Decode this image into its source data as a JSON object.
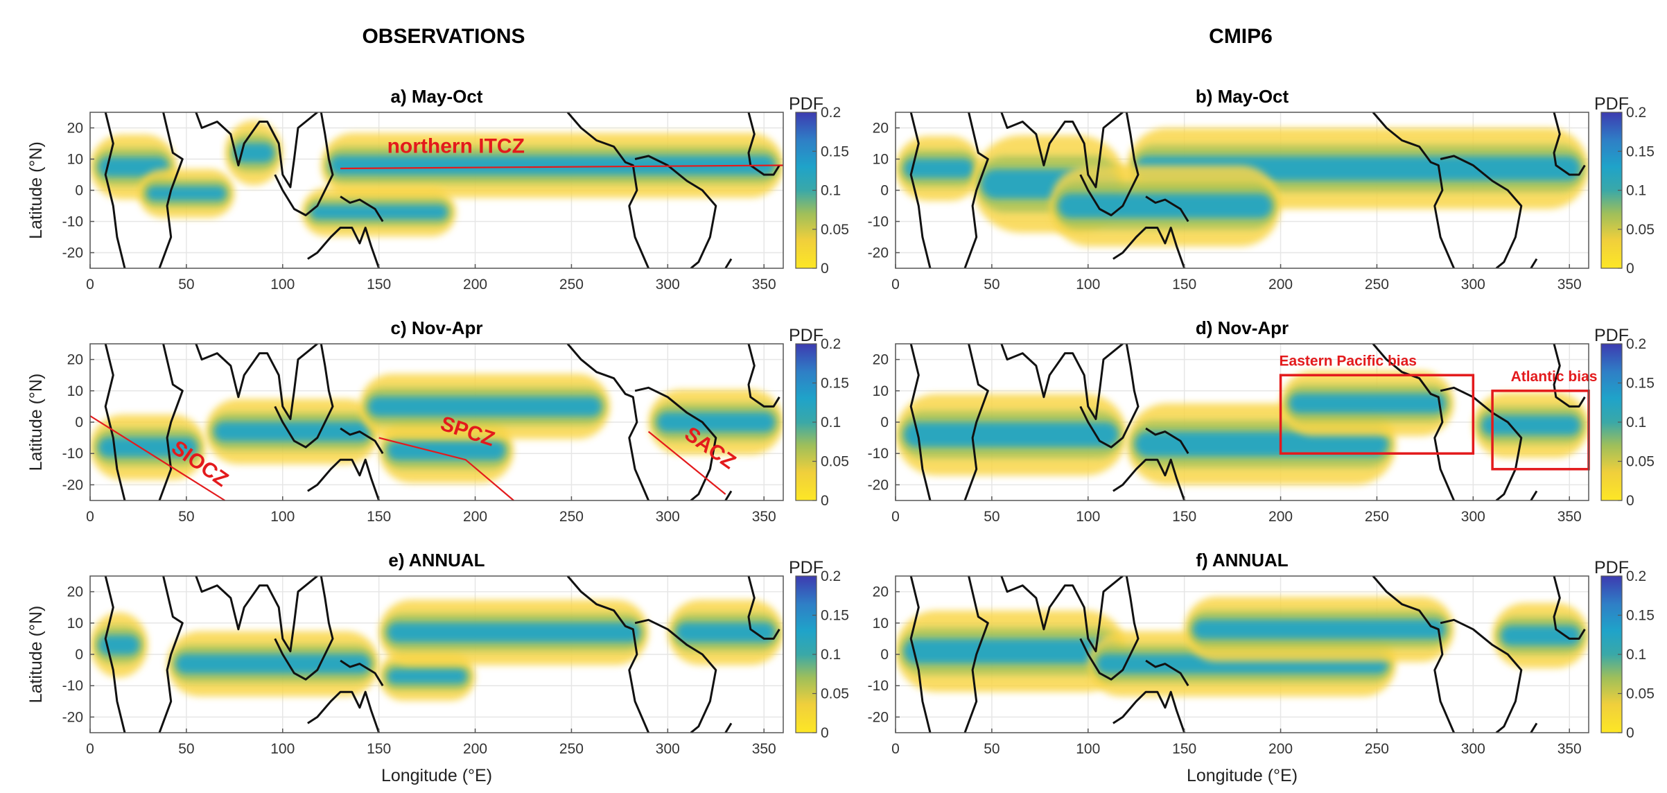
{
  "figure": {
    "columns": [
      "OBSERVATIONS",
      "CMIP6"
    ]
  },
  "chart_data": [
    {
      "type": "heatmap",
      "title": "a) May-Oct",
      "xlabel": "",
      "ylabel": "Latitude (°N)",
      "xlim": [
        0,
        360
      ],
      "ylim": [
        -25,
        25
      ],
      "xticks": [
        "0",
        "50",
        "100",
        "150",
        "200",
        "250",
        "300",
        "350"
      ],
      "yticks": [
        "20",
        "10",
        "0",
        "-10",
        "-20"
      ],
      "grid": true,
      "colorbar": {
        "label": "PDF",
        "ticks": [
          "0.2",
          "0.15",
          "0.1",
          "0.05",
          "0"
        ],
        "range": [
          0,
          0.2
        ],
        "colors": [
          "#fde725",
          "#e0b84a",
          "#1ca8c4",
          "#2a8fc1",
          "#3d3bb0"
        ]
      },
      "annotations": [
        {
          "text": "northern ITCZ",
          "kind": "label",
          "x": 190,
          "y": 12
        },
        {
          "kind": "line",
          "points": [
            [
              130,
              7
            ],
            [
              360,
              8
            ]
          ]
        }
      ],
      "bands": [
        {
          "lon": [
            0,
            45
          ],
          "lat": 7.5,
          "width": 4
        },
        {
          "lon": [
            70,
            100
          ],
          "lat": 12,
          "width": 4
        },
        {
          "lon": [
            120,
            360
          ],
          "lat": 8,
          "width": 4
        },
        {
          "lon": [
            25,
            75
          ],
          "lat": -1,
          "width": 3
        },
        {
          "lon": [
            110,
            190
          ],
          "lat": -7,
          "width": 3
        }
      ]
    },
    {
      "type": "heatmap",
      "title": "b) May-Oct",
      "xlabel": "",
      "ylabel": "",
      "xlim": [
        0,
        360
      ],
      "ylim": [
        -25,
        25
      ],
      "xticks": [
        "0",
        "50",
        "100",
        "150",
        "200",
        "250",
        "300",
        "350"
      ],
      "yticks": [
        "20",
        "10",
        "0",
        "-10",
        "-20"
      ],
      "grid": true,
      "colorbar": {
        "label": "PDF",
        "ticks": [
          "0.2",
          "0.15",
          "0.1",
          "0.05",
          "0"
        ],
        "range": [
          0,
          0.2
        ]
      },
      "annotations": [],
      "bands": [
        {
          "lon": [
            0,
            45
          ],
          "lat": 7,
          "width": 4
        },
        {
          "lon": [
            40,
            120
          ],
          "lat": 2,
          "width": 6
        },
        {
          "lon": [
            120,
            360
          ],
          "lat": 7,
          "width": 5
        },
        {
          "lon": [
            80,
            200
          ],
          "lat": -5,
          "width": 5
        }
      ]
    },
    {
      "type": "heatmap",
      "title": "c) Nov-Apr",
      "xlabel": "",
      "ylabel": "Latitude (°N)",
      "xlim": [
        0,
        360
      ],
      "ylim": [
        -25,
        25
      ],
      "xticks": [
        "0",
        "50",
        "100",
        "150",
        "200",
        "250",
        "300",
        "350"
      ],
      "yticks": [
        "20",
        "10",
        "0",
        "-10",
        "-20"
      ],
      "grid": true,
      "colorbar": {
        "label": "PDF",
        "ticks": [
          "0.2",
          "0.15",
          "0.1",
          "0.05",
          "0"
        ],
        "range": [
          0,
          0.2
        ]
      },
      "annotations": [
        {
          "text": "SIOCZ",
          "kind": "label",
          "x": 55,
          "y": -15
        },
        {
          "text": "SPCZ",
          "kind": "label",
          "x": 195,
          "y": -5
        },
        {
          "text": "SACZ",
          "kind": "label",
          "x": 320,
          "y": -10
        },
        {
          "kind": "line",
          "points": [
            [
              0,
              2
            ],
            [
              70,
              -25
            ]
          ]
        },
        {
          "kind": "line",
          "points": [
            [
              150,
              -5
            ],
            [
              195,
              -12
            ],
            [
              220,
              -25
            ]
          ]
        },
        {
          "kind": "line",
          "points": [
            [
              290,
              -3
            ],
            [
              330,
              -23
            ]
          ]
        }
      ],
      "bands": [
        {
          "lon": [
            0,
            60
          ],
          "lat": -8,
          "width": 4
        },
        {
          "lon": [
            60,
            150
          ],
          "lat": -3,
          "width": 4
        },
        {
          "lon": [
            150,
            220
          ],
          "lat": -9,
          "width": 4
        },
        {
          "lon": [
            140,
            270
          ],
          "lat": 5,
          "width": 4
        },
        {
          "lon": [
            290,
            360
          ],
          "lat": 0,
          "width": 4
        }
      ]
    },
    {
      "type": "heatmap",
      "title": "d) Nov-Apr",
      "xlabel": "",
      "ylabel": "",
      "xlim": [
        0,
        360
      ],
      "ylim": [
        -25,
        25
      ],
      "xticks": [
        "0",
        "50",
        "100",
        "150",
        "200",
        "250",
        "300",
        "350"
      ],
      "yticks": [
        "20",
        "10",
        "0",
        "-10",
        "-20"
      ],
      "grid": true,
      "colorbar": {
        "label": "PDF",
        "ticks": [
          "0.2",
          "0.15",
          "0.1",
          "0.05",
          "0"
        ],
        "range": [
          0,
          0.2
        ]
      },
      "annotations": [
        {
          "text": "Eastern Pacific bias",
          "kind": "label",
          "x": 235,
          "y": 18
        },
        {
          "text": "Atlantic bias",
          "kind": "label",
          "x": 342,
          "y": 13
        },
        {
          "kind": "rect",
          "lon": [
            200,
            300
          ],
          "lat": [
            -10,
            15
          ]
        },
        {
          "kind": "rect",
          "lon": [
            310,
            360
          ],
          "lat": [
            -15,
            10
          ]
        }
      ],
      "bands": [
        {
          "lon": [
            0,
            120
          ],
          "lat": -4,
          "width": 5
        },
        {
          "lon": [
            120,
            260
          ],
          "lat": -7,
          "width": 5
        },
        {
          "lon": [
            200,
            290
          ],
          "lat": 6,
          "width": 4
        },
        {
          "lon": [
            300,
            360
          ],
          "lat": -1,
          "width": 4
        }
      ]
    },
    {
      "type": "heatmap",
      "title": "e) ANNUAL",
      "xlabel": "Longitude (°E)",
      "ylabel": "Latitude (°N)",
      "xlim": [
        0,
        360
      ],
      "ylim": [
        -25,
        25
      ],
      "xticks": [
        "0",
        "50",
        "100",
        "150",
        "200",
        "250",
        "300",
        "350"
      ],
      "yticks": [
        "20",
        "10",
        "0",
        "-10",
        "-20"
      ],
      "grid": true,
      "colorbar": {
        "label": "PDF",
        "ticks": [
          "0.2",
          "0.15",
          "0.1",
          "0.05",
          "0"
        ],
        "range": [
          0,
          0.2
        ]
      },
      "annotations": [],
      "bands": [
        {
          "lon": [
            0,
            30
          ],
          "lat": 3,
          "width": 4
        },
        {
          "lon": [
            40,
            150
          ],
          "lat": -3,
          "width": 4
        },
        {
          "lon": [
            150,
            200
          ],
          "lat": -7,
          "width": 3
        },
        {
          "lon": [
            150,
            290
          ],
          "lat": 7,
          "width": 4
        },
        {
          "lon": [
            300,
            360
          ],
          "lat": 7,
          "width": 4
        }
      ]
    },
    {
      "type": "heatmap",
      "title": "f) ANNUAL",
      "xlabel": "Longitude (°E)",
      "ylabel": "",
      "xlim": [
        0,
        360
      ],
      "ylim": [
        -25,
        25
      ],
      "xticks": [
        "0",
        "50",
        "100",
        "150",
        "200",
        "250",
        "300",
        "350"
      ],
      "yticks": [
        "20",
        "10",
        "0",
        "-10",
        "-20"
      ],
      "grid": true,
      "colorbar": {
        "label": "PDF",
        "ticks": [
          "0.2",
          "0.15",
          "0.1",
          "0.05",
          "0"
        ],
        "range": [
          0,
          0.2
        ]
      },
      "annotations": [],
      "bands": [
        {
          "lon": [
            0,
            120
          ],
          "lat": 1,
          "width": 5
        },
        {
          "lon": [
            100,
            260
          ],
          "lat": -3,
          "width": 4
        },
        {
          "lon": [
            150,
            290
          ],
          "lat": 8,
          "width": 4
        },
        {
          "lon": [
            310,
            360
          ],
          "lat": 6,
          "width": 4
        }
      ]
    }
  ]
}
